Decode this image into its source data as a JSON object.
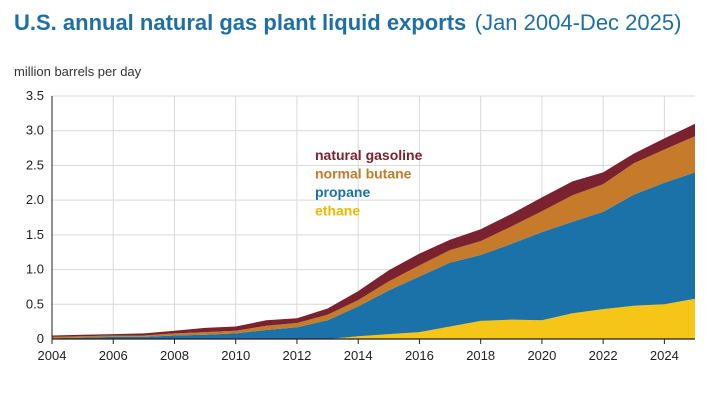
{
  "header": {
    "title": "U.S. annual natural gas plant liquid exports",
    "subtitle": "(Jan 2004-Dec 2025)"
  },
  "chart_data": {
    "type": "area",
    "stacked": true,
    "ylabel": "million barrels per day",
    "xlabel": "",
    "xlim": [
      2004,
      2025
    ],
    "ylim": [
      0,
      3.5
    ],
    "grid": true,
    "x_ticks": [
      "2004",
      "2006",
      "2008",
      "2010",
      "2012",
      "2014",
      "2016",
      "2018",
      "2020",
      "2022",
      "2024"
    ],
    "y_ticks": [
      "0",
      "0.5",
      "1.0",
      "1.5",
      "2.0",
      "2.5",
      "3.0",
      "3.5"
    ],
    "x": [
      2004,
      2005,
      2006,
      2007,
      2008,
      2009,
      2010,
      2011,
      2012,
      2013,
      2014,
      2015,
      2016,
      2017,
      2018,
      2019,
      2020,
      2021,
      2022,
      2023,
      2024,
      2025
    ],
    "series": [
      {
        "name": "ethane",
        "color": "#f5c518",
        "values": [
          0,
          0,
          0,
          0,
          0,
          0,
          0,
          0,
          0,
          0,
          0.04,
          0.07,
          0.1,
          0.18,
          0.26,
          0.28,
          0.27,
          0.37,
          0.43,
          0.48,
          0.5,
          0.58
        ]
      },
      {
        "name": "propane",
        "color": "#1a72a8",
        "values": [
          0.01,
          0.02,
          0.03,
          0.03,
          0.05,
          0.06,
          0.08,
          0.13,
          0.17,
          0.27,
          0.43,
          0.63,
          0.8,
          0.92,
          0.95,
          1.09,
          1.27,
          1.32,
          1.4,
          1.6,
          1.75,
          1.82
        ]
      },
      {
        "name": "normal butane",
        "color": "#c67b2a",
        "values": [
          0.02,
          0.02,
          0.02,
          0.02,
          0.03,
          0.04,
          0.04,
          0.06,
          0.06,
          0.08,
          0.09,
          0.13,
          0.16,
          0.18,
          0.2,
          0.25,
          0.3,
          0.38,
          0.4,
          0.45,
          0.48,
          0.52
        ]
      },
      {
        "name": "natural gasoline",
        "color": "#7a2230",
        "values": [
          0.02,
          0.02,
          0.02,
          0.03,
          0.04,
          0.06,
          0.06,
          0.08,
          0.07,
          0.09,
          0.13,
          0.16,
          0.17,
          0.15,
          0.17,
          0.18,
          0.2,
          0.2,
          0.17,
          0.14,
          0.16,
          0.18
        ]
      }
    ],
    "legend_position": "center-left, inside plot",
    "legend_order": [
      "natural gasoline",
      "normal butane",
      "propane",
      "ethane"
    ]
  },
  "colors": {
    "title": "#1f6fa6",
    "background": "#ffffff",
    "grid": "#d9d9d9",
    "axis": "#222222"
  }
}
